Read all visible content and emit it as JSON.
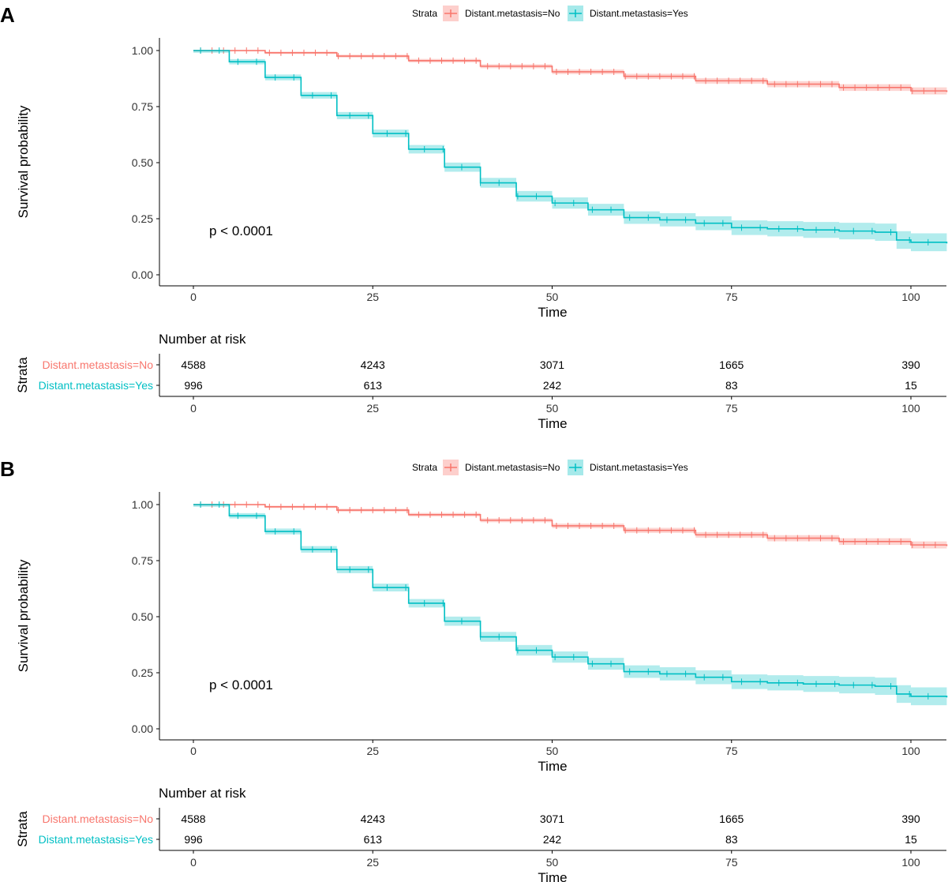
{
  "colors": {
    "no": "#F8766D",
    "yes": "#00BFC4",
    "axis": "#000000",
    "tick_text": "#333333"
  },
  "legend": {
    "title": "Strata",
    "items": [
      "Distant.metastasis=No",
      "Distant.metastasis=Yes"
    ]
  },
  "risk_table": {
    "title": "Number at risk",
    "ylabel": "Strata",
    "time_points": [
      0,
      25,
      50,
      75,
      100
    ],
    "rows": [
      {
        "label": "Distant.metastasis=No",
        "counts": [
          "4588",
          "4243",
          "3071",
          "1665",
          "390"
        ]
      },
      {
        "label": "Distant.metastasis=Yes",
        "counts": [
          "996",
          "613",
          "242",
          "83",
          "15"
        ]
      }
    ],
    "xlabel": "Time"
  },
  "chart_data": [
    {
      "panel": "A",
      "type": "line",
      "subtype": "kaplan-meier",
      "xlabel": "Time",
      "ylabel": "Survival probability",
      "xlim": [
        -5,
        105
      ],
      "ylim": [
        0,
        1
      ],
      "xticks": [
        "0",
        "25",
        "50",
        "75",
        "100"
      ],
      "yticks": [
        "0.00",
        "0.25",
        "0.50",
        "0.75",
        "1.00"
      ],
      "annotation": "p < 0.0001",
      "series": [
        {
          "name": "Distant.metastasis=No",
          "x": [
            0,
            10,
            20,
            30,
            40,
            50,
            60,
            70,
            80,
            90,
            100,
            105
          ],
          "y": [
            1.0,
            0.99,
            0.975,
            0.955,
            0.93,
            0.905,
            0.885,
            0.865,
            0.85,
            0.835,
            0.82,
            0.815
          ]
        },
        {
          "name": "Distant.metastasis=Yes",
          "x": [
            0,
            5,
            10,
            15,
            20,
            25,
            30,
            35,
            40,
            45,
            50,
            55,
            60,
            65,
            70,
            75,
            80,
            85,
            90,
            95,
            98,
            100,
            105
          ],
          "y": [
            1.0,
            0.95,
            0.88,
            0.8,
            0.71,
            0.63,
            0.56,
            0.48,
            0.41,
            0.35,
            0.32,
            0.29,
            0.255,
            0.245,
            0.23,
            0.21,
            0.205,
            0.2,
            0.195,
            0.19,
            0.155,
            0.145,
            0.14
          ]
        }
      ]
    },
    {
      "panel": "B",
      "type": "line",
      "subtype": "kaplan-meier",
      "xlabel": "Time",
      "ylabel": "Survival probability",
      "xlim": [
        -5,
        105
      ],
      "ylim": [
        0,
        1
      ],
      "xticks": [
        "0",
        "25",
        "50",
        "75",
        "100"
      ],
      "yticks": [
        "0.00",
        "0.25",
        "0.50",
        "0.75",
        "1.00"
      ],
      "annotation": "p < 0.0001",
      "series": [
        {
          "name": "Distant.metastasis=No",
          "x": [
            0,
            10,
            20,
            30,
            40,
            50,
            60,
            70,
            80,
            90,
            100,
            105
          ],
          "y": [
            1.0,
            0.99,
            0.975,
            0.955,
            0.93,
            0.905,
            0.885,
            0.865,
            0.85,
            0.835,
            0.82,
            0.815
          ]
        },
        {
          "name": "Distant.metastasis=Yes",
          "x": [
            0,
            5,
            10,
            15,
            20,
            25,
            30,
            35,
            40,
            45,
            50,
            55,
            60,
            65,
            70,
            75,
            80,
            85,
            90,
            95,
            98,
            100,
            105
          ],
          "y": [
            1.0,
            0.95,
            0.88,
            0.8,
            0.71,
            0.63,
            0.56,
            0.48,
            0.41,
            0.35,
            0.32,
            0.29,
            0.255,
            0.245,
            0.23,
            0.21,
            0.205,
            0.2,
            0.195,
            0.19,
            0.155,
            0.145,
            0.14
          ]
        }
      ]
    }
  ]
}
